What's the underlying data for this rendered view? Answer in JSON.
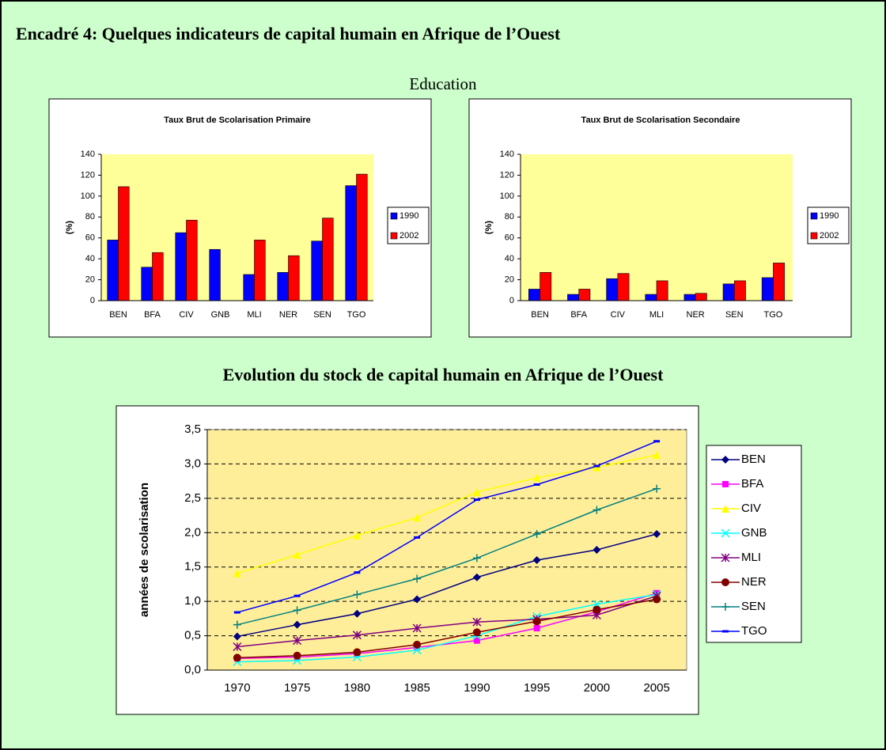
{
  "title": "Encadré 4: Quelques indicateurs de capital humain en Afrique de l’Ouest",
  "education_label": "Education",
  "section_title": "Evolution du stock de capital humain en Afrique de l’Ouest",
  "chart_data": [
    {
      "type": "bar",
      "title": "Taux Brut de Scolarisation Primaire",
      "y_label": "(%)",
      "categories": [
        "BEN",
        "BFA",
        "CIV",
        "GNB",
        "MLI",
        "NER",
        "SEN",
        "TGO"
      ],
      "series": [
        {
          "name": "1990",
          "color": "#0000ff",
          "values": [
            58,
            32,
            65,
            49,
            25,
            27,
            57,
            110
          ]
        },
        {
          "name": "2002",
          "color": "#ff0000",
          "values": [
            109,
            46,
            77,
            null,
            58,
            43,
            79,
            121
          ]
        }
      ],
      "ylim": [
        0,
        140
      ],
      "yticks": [
        0,
        20,
        40,
        60,
        80,
        100,
        120,
        140
      ],
      "grid": false,
      "legend": "right"
    },
    {
      "type": "bar",
      "title": "Taux Brut de Scolarisation Secondaire",
      "y_label": "(%)",
      "categories": [
        "BEN",
        "BFA",
        "CIV",
        "MLI",
        "NER",
        "SEN",
        "TGO"
      ],
      "series": [
        {
          "name": "1990",
          "color": "#0000ff",
          "values": [
            11,
            6,
            21,
            6,
            6,
            16,
            22
          ]
        },
        {
          "name": "2002",
          "color": "#ff0000",
          "values": [
            27,
            11,
            26,
            19,
            7,
            19,
            36
          ]
        }
      ],
      "ylim": [
        0,
        140
      ],
      "yticks": [
        0,
        20,
        40,
        60,
        80,
        100,
        120,
        140
      ],
      "grid": false,
      "legend": "right"
    },
    {
      "type": "line",
      "y_label": "années de scolarisation",
      "categories": [
        "1970",
        "1975",
        "1980",
        "1985",
        "1990",
        "1995",
        "2000",
        "2005"
      ],
      "series": [
        {
          "name": "BEN",
          "color": "#000080",
          "marker": "diamond",
          "values": [
            0.49,
            0.66,
            0.82,
            1.03,
            1.35,
            1.6,
            1.75,
            1.98
          ]
        },
        {
          "name": "BFA",
          "color": "#ff00ff",
          "marker": "square",
          "values": [
            0.17,
            0.19,
            0.24,
            0.33,
            0.43,
            0.61,
            0.85,
            1.12
          ]
        },
        {
          "name": "CIV",
          "color": "#ffff00",
          "marker": "triangle",
          "values": [
            1.41,
            1.68,
            1.96,
            2.22,
            2.59,
            2.8,
            2.95,
            3.13
          ]
        },
        {
          "name": "GNB",
          "color": "#00ffff",
          "marker": "x",
          "values": [
            0.12,
            0.14,
            0.19,
            0.29,
            0.5,
            0.78,
            0.96,
            1.1
          ]
        },
        {
          "name": "MLI",
          "color": "#800080",
          "marker": "star",
          "values": [
            0.34,
            0.43,
            0.51,
            0.61,
            0.7,
            0.74,
            0.8,
            1.08
          ]
        },
        {
          "name": "NER",
          "color": "#800000",
          "marker": "circle",
          "values": [
            0.18,
            0.21,
            0.26,
            0.37,
            0.55,
            0.71,
            0.88,
            1.03
          ]
        },
        {
          "name": "SEN",
          "color": "#008080",
          "marker": "plus",
          "values": [
            0.66,
            0.87,
            1.1,
            1.33,
            1.63,
            1.98,
            2.33,
            2.64
          ]
        },
        {
          "name": "TGO",
          "color": "#0000ff",
          "marker": "dash",
          "values": [
            0.84,
            1.08,
            1.42,
            1.93,
            2.48,
            2.7,
            2.97,
            3.33
          ]
        }
      ],
      "ylim": [
        0,
        3.5
      ],
      "yticks": [
        {
          "value": 0,
          "label": "0,0"
        },
        {
          "value": 0.5,
          "label": "0,5"
        },
        {
          "value": 1,
          "label": "1,0"
        },
        {
          "value": 1.5,
          "label": "1,5"
        },
        {
          "value": 2,
          "label": "2,0"
        },
        {
          "value": 2.5,
          "label": "2,5"
        },
        {
          "value": 3,
          "label": "3,0"
        },
        {
          "value": 3.5,
          "label": "3,5"
        }
      ],
      "grid": true,
      "legend": "right"
    }
  ]
}
